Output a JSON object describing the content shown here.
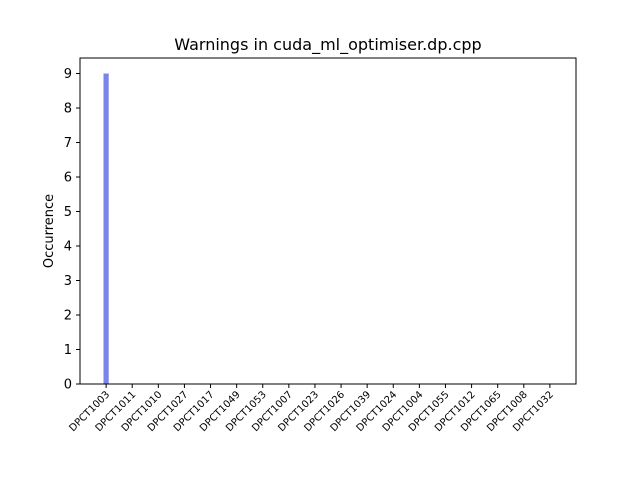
{
  "chart_data": {
    "type": "bar",
    "title": "Warnings in cuda_ml_optimiser.dp.cpp",
    "xlabel": "",
    "ylabel": "Occurrence",
    "categories": [
      "DPCT1003",
      "DPCT1011",
      "DPCT1010",
      "DPCT1027",
      "DPCT1017",
      "DPCT1049",
      "DPCT1053",
      "DPCT1007",
      "DPCT1023",
      "DPCT1026",
      "DPCT1039",
      "DPCT1024",
      "DPCT1004",
      "DPCT1055",
      "DPCT1012",
      "DPCT1065",
      "DPCT1008",
      "DPCT1032"
    ],
    "values": [
      9,
      0,
      0,
      0,
      0,
      0,
      0,
      0,
      0,
      0,
      0,
      0,
      0,
      0,
      0,
      0,
      0,
      0
    ],
    "ylim": [
      0,
      9.45
    ],
    "yticks": [
      0,
      1,
      2,
      3,
      4,
      5,
      6,
      7,
      8,
      9
    ],
    "bar_color": "#7b84e8",
    "grid": false,
    "legend": "none"
  }
}
